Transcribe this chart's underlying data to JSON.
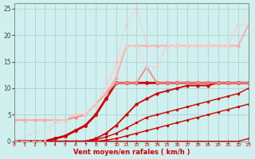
{
  "xlabel": "Vent moyen/en rafales ( km/h )",
  "xlim": [
    0,
    23
  ],
  "ylim": [
    0,
    26
  ],
  "xticks": [
    0,
    1,
    2,
    3,
    4,
    5,
    6,
    7,
    8,
    9,
    10,
    11,
    12,
    13,
    14,
    15,
    16,
    17,
    18,
    19,
    20,
    21,
    22,
    23
  ],
  "yticks": [
    0,
    5,
    10,
    15,
    20,
    25
  ],
  "background_color": "#cff0ee",
  "grid_color": "#aacccc",
  "series": [
    {
      "x": [
        0,
        1,
        2,
        3,
        4,
        5,
        6,
        7,
        8,
        9,
        10,
        11,
        12,
        13,
        14,
        15,
        16,
        17,
        18,
        19,
        20,
        21,
        22,
        23
      ],
      "y": [
        0,
        0,
        0,
        0,
        0,
        0,
        0,
        0,
        0,
        0,
        0,
        0,
        0,
        0,
        0,
        0,
        0,
        0,
        0,
        0,
        0,
        0,
        0,
        0.5
      ],
      "color": "#cc0000",
      "lw": 1.0,
      "marker": "o",
      "ms": 1.5,
      "ls": "-"
    },
    {
      "x": [
        0,
        1,
        2,
        3,
        4,
        5,
        6,
        7,
        8,
        9,
        10,
        11,
        12,
        13,
        14,
        15,
        16,
        17,
        18,
        19,
        20,
        21,
        22,
        23
      ],
      "y": [
        0,
        0,
        0,
        0,
        0,
        0,
        0,
        0,
        0,
        0.2,
        0.5,
        1,
        1.5,
        2,
        2.5,
        3,
        3.5,
        4,
        4.5,
        5,
        5.5,
        6,
        6.5,
        7
      ],
      "color": "#cc0000",
      "lw": 1.0,
      "marker": "o",
      "ms": 1.5,
      "ls": "-"
    },
    {
      "x": [
        0,
        1,
        2,
        3,
        4,
        5,
        6,
        7,
        8,
        9,
        10,
        11,
        12,
        13,
        14,
        15,
        16,
        17,
        18,
        19,
        20,
        21,
        22,
        23
      ],
      "y": [
        0,
        0,
        0,
        0,
        0,
        0,
        0,
        0,
        0.3,
        0.8,
        1.5,
        2.5,
        3.5,
        4.5,
        5,
        5.5,
        6,
        6.5,
        7,
        7.5,
        8,
        8.5,
        9,
        10
      ],
      "color": "#cc0000",
      "lw": 1.0,
      "marker": "o",
      "ms": 1.5,
      "ls": "-"
    },
    {
      "x": [
        0,
        1,
        2,
        3,
        4,
        5,
        6,
        7,
        8,
        9,
        10,
        11,
        12,
        13,
        14,
        15,
        16,
        17,
        18,
        19,
        20,
        21,
        22,
        23
      ],
      "y": [
        0,
        0,
        0,
        0,
        0,
        0,
        0,
        0,
        0.5,
        1.5,
        3,
        5,
        7,
        8,
        9,
        9.5,
        10,
        10.5,
        10.5,
        10.5,
        11,
        11,
        11,
        11
      ],
      "color": "#cc0000",
      "lw": 1.3,
      "marker": "o",
      "ms": 2.0,
      "ls": "-"
    },
    {
      "x": [
        0,
        1,
        2,
        3,
        4,
        5,
        6,
        7,
        8,
        9,
        10,
        11,
        12,
        13,
        14,
        15,
        16,
        17,
        18,
        19,
        20,
        21,
        22,
        23
      ],
      "y": [
        0,
        0,
        0,
        0,
        0.5,
        1,
        2,
        3,
        5,
        8,
        11,
        11,
        11,
        11,
        11,
        11,
        11,
        11,
        11,
        11,
        11,
        11,
        11,
        11
      ],
      "color": "#cc0000",
      "lw": 2.0,
      "marker": "o",
      "ms": 2.5,
      "ls": "-"
    },
    {
      "x": [
        0,
        1,
        2,
        3,
        4,
        5,
        6,
        7,
        8,
        9,
        10,
        11,
        12,
        13,
        14,
        15,
        16,
        17,
        18,
        19,
        20,
        21,
        22,
        23
      ],
      "y": [
        4,
        4,
        4,
        4,
        4,
        4,
        4.5,
        5,
        7,
        9,
        11,
        11,
        11,
        14,
        11,
        11,
        11,
        11,
        11,
        11,
        11,
        11,
        11,
        11
      ],
      "color": "#ff8888",
      "lw": 1.3,
      "marker": "o",
      "ms": 2.0,
      "ls": "-"
    },
    {
      "x": [
        0,
        1,
        2,
        3,
        4,
        5,
        6,
        7,
        8,
        9,
        10,
        11,
        12,
        13,
        14,
        15,
        16,
        17,
        18,
        19,
        20,
        21,
        22,
        23
      ],
      "y": [
        4,
        4,
        4,
        4,
        4,
        4,
        5,
        5,
        7,
        9,
        12,
        18,
        18,
        18,
        18,
        18,
        18,
        18,
        18,
        18,
        18,
        18,
        18,
        22
      ],
      "color": "#ffaaaa",
      "lw": 1.3,
      "marker": "o",
      "ms": 2.0,
      "ls": "-"
    },
    {
      "x": [
        0,
        5,
        6,
        7,
        8,
        9,
        10,
        11,
        12,
        13,
        14,
        15,
        16,
        17,
        18,
        19,
        20,
        21,
        22,
        23
      ],
      "y": [
        0,
        4,
        5,
        5,
        7,
        10,
        15,
        22,
        25,
        18,
        18,
        18,
        18,
        18,
        18,
        18,
        18,
        18,
        22,
        22
      ],
      "color": "#ffbbbb",
      "lw": 1.0,
      "marker": "o",
      "ms": 1.5,
      "ls": ":"
    },
    {
      "x": [
        0,
        1,
        2,
        3,
        4,
        5,
        6,
        7,
        8,
        9,
        10,
        11,
        12,
        13,
        14,
        15,
        16,
        17,
        18,
        19,
        20,
        21,
        22,
        23
      ],
      "y": [
        0,
        0,
        0,
        0,
        4,
        4,
        5,
        5,
        7,
        10,
        14,
        18,
        18,
        14,
        14,
        18,
        18,
        18,
        18,
        18,
        18,
        18,
        22,
        22
      ],
      "color": "#ffcccc",
      "lw": 1.0,
      "marker": "o",
      "ms": 1.5,
      "ls": "--"
    }
  ]
}
